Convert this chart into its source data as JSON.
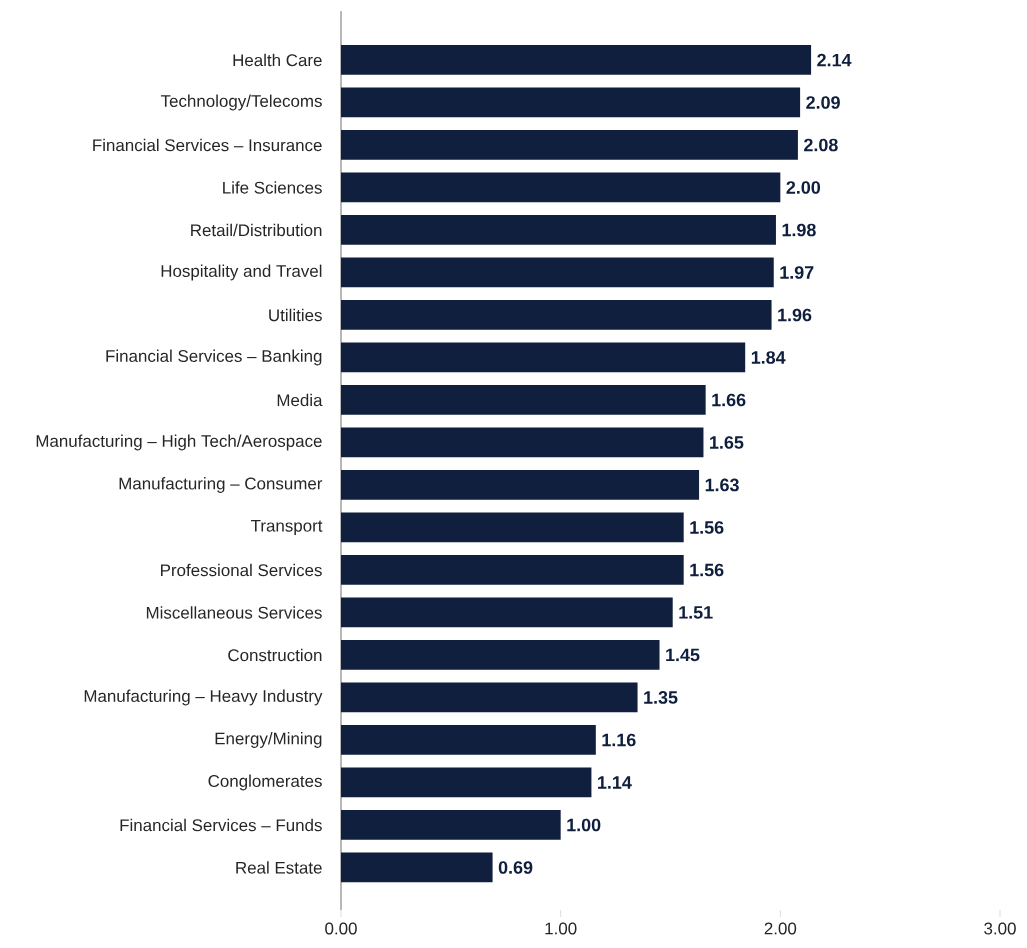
{
  "chart_data": {
    "type": "bar",
    "orientation": "horizontal",
    "color": "#0f1f3d",
    "value_labels": [
      "2.14",
      "2.09",
      "2.08",
      "2.00",
      "1.98",
      "1.97",
      "1.96",
      "1.84",
      "1.66",
      "1.65",
      "1.63",
      "1.56",
      "1.56",
      "1.51",
      "1.45",
      "1.35",
      "1.16",
      "1.14",
      "1.00",
      "0.69"
    ],
    "grid": false,
    "categories": [
      "Health Care",
      "Technology/Telecoms",
      "Financial Services – Insurance",
      "Life Sciences",
      "Retail/Distribution",
      "Hospitality and Travel",
      "Utilities",
      "Financial Services – Banking",
      "Media",
      "Manufacturing – High Tech/Aerospace",
      "Manufacturing – Consumer",
      "Transport",
      "Professional Services",
      "Miscellaneous Services",
      "Construction",
      "Manufacturing – Heavy Industry",
      "Energy/Mining",
      "Conglomerates",
      "Financial Services – Funds",
      "Real Estate"
    ],
    "values": [
      2.14,
      2.09,
      2.08,
      2.0,
      1.98,
      1.97,
      1.96,
      1.84,
      1.66,
      1.65,
      1.63,
      1.56,
      1.56,
      1.51,
      1.45,
      1.35,
      1.16,
      1.14,
      1.0,
      0.69
    ],
    "xlim": [
      0,
      3
    ],
    "xticks": [
      {
        "value": 0,
        "label": "0.00"
      },
      {
        "value": 1,
        "label": "1.00"
      },
      {
        "value": 2,
        "label": "2.00"
      },
      {
        "value": 3,
        "label": "3.00"
      }
    ]
  }
}
